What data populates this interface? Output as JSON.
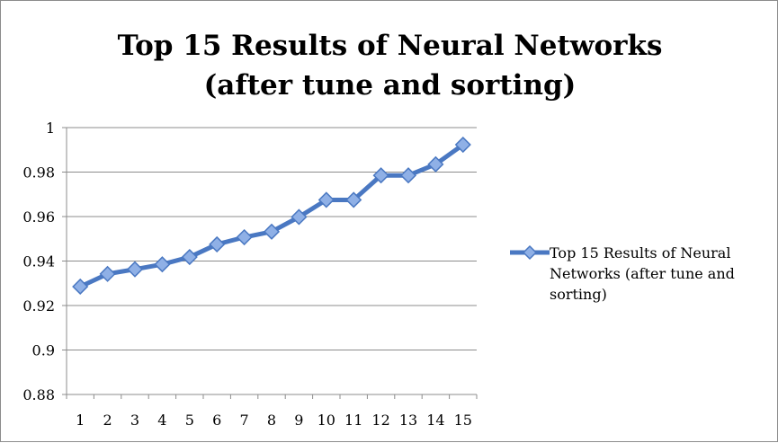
{
  "chart_data": {
    "type": "line",
    "title": "Top 15 Results of Neural Networks (after tune and sorting)",
    "title_lines": [
      "Top 15 Results of Neural Networks",
      "(after tune and sorting)"
    ],
    "categories": [
      "1",
      "2",
      "3",
      "4",
      "5",
      "6",
      "7",
      "8",
      "9",
      "10",
      "11",
      "12",
      "13",
      "14",
      "15"
    ],
    "series": [
      {
        "name": "Top 15 Results of Neural Networks (after tune and sorting)",
        "values": [
          0.9285,
          0.9342,
          0.9363,
          0.9385,
          0.9418,
          0.9475,
          0.9507,
          0.9532,
          0.9598,
          0.9675,
          0.9675,
          0.9785,
          0.9785,
          0.9835,
          0.9923
        ],
        "color": "#4a78c2",
        "marker_color": "#8fb0e6"
      }
    ],
    "yticks": [
      "0.88",
      "0.9",
      "0.92",
      "0.94",
      "0.96",
      "0.98",
      "1"
    ],
    "ylim": [
      0.88,
      1
    ],
    "xlabel": "",
    "ylabel": "",
    "grid": true,
    "legend": "right"
  }
}
